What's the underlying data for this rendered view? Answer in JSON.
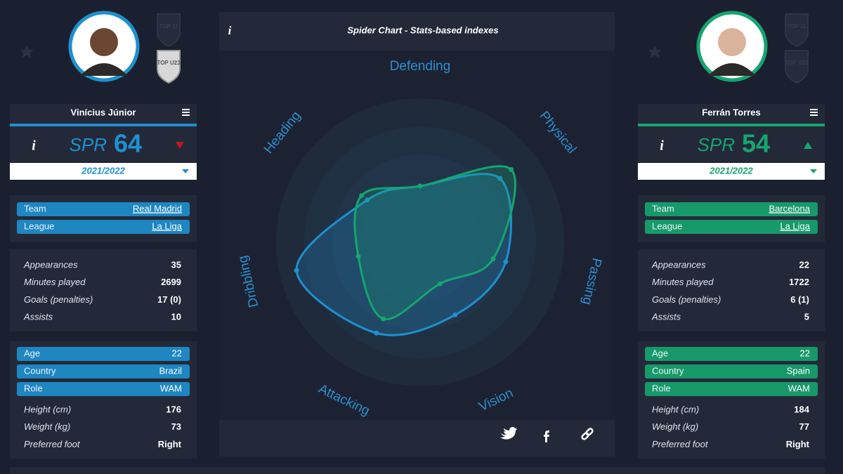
{
  "chart_data": {
    "type": "radar",
    "title": "Spider Chart - Stats-based indexes",
    "categories": [
      "Defending",
      "Physical",
      "Passing",
      "Vision",
      "Attacking",
      "Dribbling",
      "Heading"
    ],
    "rlim": [
      0,
      100
    ],
    "series": [
      {
        "name": "Vinícius Júnior",
        "color": "#1e90d0",
        "values": [
          39,
          71,
          61,
          56,
          70,
          88,
          47
        ]
      },
      {
        "name": "Ferrán Torres",
        "color": "#16a56f",
        "values": [
          39,
          81,
          52,
          32,
          59,
          44,
          52
        ]
      }
    ]
  },
  "info_label": "i",
  "players": [
    {
      "spr_label": "SPR",
      "spr": 64,
      "trend": "down",
      "season": "2021/2022",
      "badges": [
        {
          "label": "TOP 11",
          "active": false
        },
        {
          "label": "TOP U23",
          "active": true
        }
      ],
      "club": [
        {
          "label": "Team",
          "value": "Real Madrid"
        },
        {
          "label": "League",
          "value": "La Liga"
        }
      ],
      "stats": [
        {
          "label": "Appearances",
          "value": "35"
        },
        {
          "label": "Minutes played",
          "value": "2699"
        },
        {
          "label": "Goals (penalties)",
          "value": "17 (0)"
        },
        {
          "label": "Assists",
          "value": "10"
        }
      ],
      "profile": [
        {
          "label": "Age",
          "value": "22"
        },
        {
          "label": "Country",
          "value": "Brazil"
        },
        {
          "label": "Role",
          "value": "WAM"
        }
      ],
      "physical": [
        {
          "label": "Height (cm)",
          "value": "176"
        },
        {
          "label": "Weight (kg)",
          "value": "73"
        },
        {
          "label": "Preferred foot",
          "value": "Right"
        }
      ]
    },
    {
      "spr_label": "SPR",
      "spr": 54,
      "trend": "up",
      "season": "2021/2022",
      "badges": [
        {
          "label": "TOP 11",
          "active": false
        },
        {
          "label": "TOP U23",
          "active": false
        }
      ],
      "club": [
        {
          "label": "Team",
          "value": "Barcelona"
        },
        {
          "label": "League",
          "value": "La Liga"
        }
      ],
      "stats": [
        {
          "label": "Appearances",
          "value": "22"
        },
        {
          "label": "Minutes played",
          "value": "1722"
        },
        {
          "label": "Goals (penalties)",
          "value": "6 (1)"
        },
        {
          "label": "Assists",
          "value": "5"
        }
      ],
      "profile": [
        {
          "label": "Age",
          "value": "22"
        },
        {
          "label": "Country",
          "value": "Spain"
        },
        {
          "label": "Role",
          "value": "WAM"
        }
      ],
      "physical": [
        {
          "label": "Height (cm)",
          "value": "184"
        },
        {
          "label": "Weight (kg)",
          "value": "77"
        },
        {
          "label": "Preferred foot",
          "value": "Right"
        }
      ]
    }
  ]
}
